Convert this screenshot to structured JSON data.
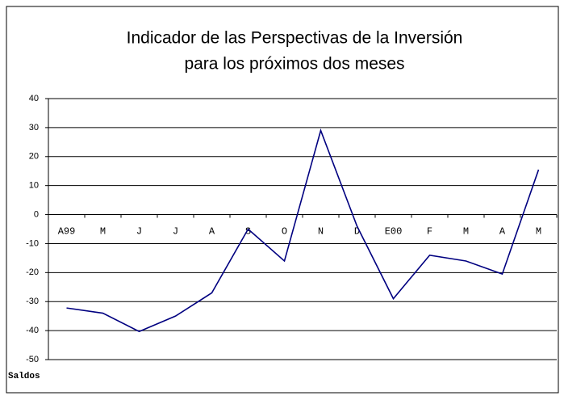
{
  "chart_data": {
    "type": "line",
    "title": [
      "Indicador de las Perspectivas de la Inversión",
      "para los próximos dos meses"
    ],
    "ylabel": "Saldos",
    "categories": [
      "A99",
      "M",
      "J",
      "J",
      "A",
      "S",
      "O",
      "N",
      "D",
      "E00",
      "F",
      "M",
      "A",
      "M"
    ],
    "series": [
      {
        "name": "Saldos",
        "color": "#000080",
        "values": [
          -32.2,
          -34,
          -40.3,
          -35,
          -27,
          -5,
          -16,
          29,
          -4,
          -29,
          -14,
          -16,
          -20.5,
          15.5
        ]
      }
    ],
    "ylim": [
      -50,
      40
    ],
    "yticks": [
      -50,
      -40,
      -30,
      -20,
      -10,
      0,
      10,
      20,
      30,
      40
    ],
    "grid": true
  }
}
